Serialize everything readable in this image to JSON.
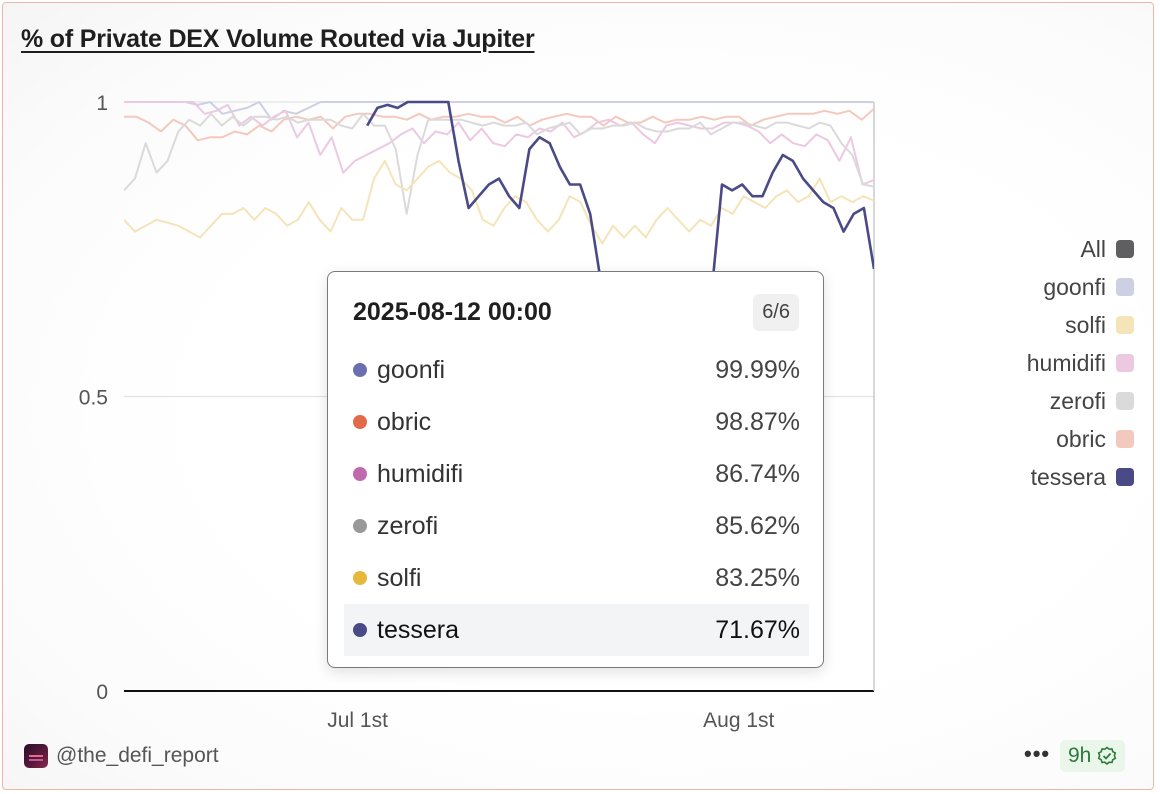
{
  "title": "% of Private DEX Volume Routed via Jupiter",
  "legend": {
    "items": [
      {
        "label": "All",
        "color": "#5f5f62"
      },
      {
        "label": "goonfi",
        "color": "#cdd0e3"
      },
      {
        "label": "solfi",
        "color": "#f5e4b8"
      },
      {
        "label": "humidifi",
        "color": "#ecc9e1"
      },
      {
        "label": "zerofi",
        "color": "#dadada"
      },
      {
        "label": "obric",
        "color": "#f4c9bd"
      },
      {
        "label": "tessera",
        "color": "#4a4a86"
      }
    ]
  },
  "tooltip": {
    "header": "2025-08-12 00:00",
    "count": "6/6",
    "rows": [
      {
        "name": "goonfi",
        "value": "99.99%",
        "color": "#6a6fb0"
      },
      {
        "name": "obric",
        "value": "98.87%",
        "color": "#e06a4a"
      },
      {
        "name": "humidifi",
        "value": "86.74%",
        "color": "#c06aae"
      },
      {
        "name": "zerofi",
        "value": "85.62%",
        "color": "#999999"
      },
      {
        "name": "solfi",
        "value": "83.25%",
        "color": "#e8b83a"
      },
      {
        "name": "tessera",
        "value": "71.67%",
        "color": "#4a4a86"
      }
    ]
  },
  "footer": {
    "handle": "@the_defi_report",
    "more_icon": "more-horizontal-icon",
    "age": "9h",
    "age_icon": "verified-check-icon"
  },
  "chart_data": {
    "type": "line",
    "x_start": "2025-06-12",
    "x_end": "2025-08-12",
    "xticks": [
      "Jul 1st",
      "Aug 1st"
    ],
    "yticks": [
      "0",
      "0.5",
      "1"
    ],
    "ylim": [
      0,
      1
    ],
    "highlighted_series": "tessera",
    "series": [
      {
        "name": "goonfi",
        "color": "#cdd0e3",
        "values": [
          1,
          1,
          1,
          1,
          1,
          1,
          0.995,
          1,
          0.98,
          0.985,
          0.99,
          1,
          0.97,
          0.985,
          0.98,
          0.99,
          1,
          1,
          1,
          1,
          1,
          1,
          1,
          1,
          1,
          1,
          1,
          1,
          1,
          1,
          1,
          1,
          1,
          1,
          1,
          1,
          1,
          1,
          1,
          1,
          1,
          1,
          1,
          1,
          1,
          1,
          1,
          1,
          1,
          1,
          1,
          1,
          1,
          1,
          1,
          1,
          1,
          1,
          1,
          1,
          1,
          0.9999
        ]
      },
      {
        "name": "obric",
        "color": "#f4c9bd",
        "values": [
          0.975,
          0.975,
          0.965,
          0.95,
          0.97,
          0.96,
          0.935,
          0.94,
          0.94,
          0.95,
          0.945,
          0.96,
          0.95,
          0.97,
          0.975,
          0.97,
          0.975,
          0.955,
          0.975,
          0.98,
          0.98,
          0.975,
          0.975,
          0.97,
          0.98,
          0.97,
          0.975,
          0.975,
          0.98,
          0.975,
          0.975,
          0.965,
          0.975,
          0.96,
          0.97,
          0.975,
          0.98,
          0.975,
          0.975,
          0.96,
          0.975,
          0.965,
          0.965,
          0.975,
          0.965,
          0.97,
          0.97,
          0.975,
          0.97,
          0.975,
          0.975,
          0.96,
          0.97,
          0.975,
          0.98,
          0.98,
          0.98,
          0.985,
          0.98,
          0.985,
          0.97,
          0.9887
        ]
      },
      {
        "name": "humidifi",
        "color": "#ecc9e1",
        "values": [
          1,
          1,
          1,
          1,
          1,
          1,
          1,
          0.98,
          0.985,
          0.995,
          0.96,
          0.975,
          0.96,
          0.975,
          0.985,
          0.94,
          0.965,
          0.91,
          0.94,
          0.88,
          0.9,
          0.91,
          0.92,
          0.93,
          0.945,
          0.955,
          0.93,
          0.95,
          0.945,
          0.965,
          0.935,
          0.955,
          0.93,
          0.925,
          0.945,
          0.94,
          0.955,
          0.95,
          0.965,
          0.94,
          0.95,
          0.965,
          0.97,
          0.96,
          0.965,
          0.945,
          0.93,
          0.96,
          0.965,
          0.96,
          0.955,
          0.955,
          0.965,
          0.965,
          0.96,
          0.95,
          0.93,
          0.945,
          0.93,
          0.925,
          0.945,
          0.935,
          0.9,
          0.94,
          0.86,
          0.8674
        ]
      },
      {
        "name": "zerofi",
        "color": "#dadada",
        "values": [
          0.85,
          0.87,
          0.93,
          0.88,
          0.9,
          0.95,
          0.97,
          0.96,
          0.98,
          0.96,
          0.975,
          0.96,
          0.975,
          0.975,
          0.97,
          0.975,
          0.965,
          0.97,
          0.97,
          0.97,
          0.96,
          0.955,
          0.98,
          0.96,
          0.96,
          0.92,
          0.81,
          0.91,
          0.97,
          0.97,
          0.97,
          0.97,
          0.965,
          0.96,
          0.965,
          0.96,
          0.96,
          0.965,
          0.945,
          0.955,
          0.96,
          0.965,
          0.945,
          0.955,
          0.955,
          0.96,
          0.96,
          0.965,
          0.955,
          0.95,
          0.95,
          0.955,
          0.955,
          0.965,
          0.945,
          0.955,
          0.965,
          0.965,
          0.96,
          0.955,
          0.965,
          0.965,
          0.96,
          0.955,
          0.965,
          0.96,
          0.93,
          0.91,
          0.86,
          0.8562
        ]
      },
      {
        "name": "solfi",
        "color": "#f5e4b8",
        "values": [
          0.8,
          0.78,
          0.79,
          0.8,
          0.795,
          0.79,
          0.78,
          0.77,
          0.79,
          0.81,
          0.81,
          0.82,
          0.8,
          0.82,
          0.81,
          0.79,
          0.8,
          0.83,
          0.8,
          0.78,
          0.82,
          0.8,
          0.8,
          0.87,
          0.9,
          0.86,
          0.85,
          0.87,
          0.89,
          0.9,
          0.88,
          0.87,
          0.85,
          0.8,
          0.79,
          0.82,
          0.84,
          0.83,
          0.8,
          0.78,
          0.8,
          0.84,
          0.83,
          0.79,
          0.76,
          0.79,
          0.77,
          0.79,
          0.77,
          0.8,
          0.82,
          0.8,
          0.78,
          0.8,
          0.79,
          0.82,
          0.81,
          0.84,
          0.83,
          0.82,
          0.84,
          0.85,
          0.83,
          0.84,
          0.87,
          0.83,
          0.84,
          0.83,
          0.84,
          0.8325
        ]
      },
      {
        "name": "tessera",
        "color": "#4a4a86",
        "values": [
          null,
          null,
          null,
          null,
          null,
          null,
          null,
          null,
          null,
          null,
          null,
          null,
          null,
          null,
          null,
          null,
          null,
          null,
          null,
          null,
          null,
          null,
          null,
          null,
          0.96,
          0.99,
          0.995,
          0.99,
          1,
          1,
          1,
          1,
          1,
          0.9,
          0.82,
          0.84,
          0.86,
          0.87,
          0.84,
          0.82,
          0.92,
          0.94,
          0.93,
          0.89,
          0.86,
          0.86,
          0.81,
          0.7,
          0.68,
          0.67,
          0.66,
          0.68,
          0.69,
          0.67,
          0.69,
          0.68,
          0.69,
          0.67,
          0.68,
          0.86,
          0.85,
          0.86,
          0.84,
          0.84,
          0.88,
          0.91,
          0.9,
          0.87,
          0.85,
          0.83,
          0.82,
          0.78,
          0.81,
          0.82,
          0.7167
        ]
      }
    ]
  }
}
